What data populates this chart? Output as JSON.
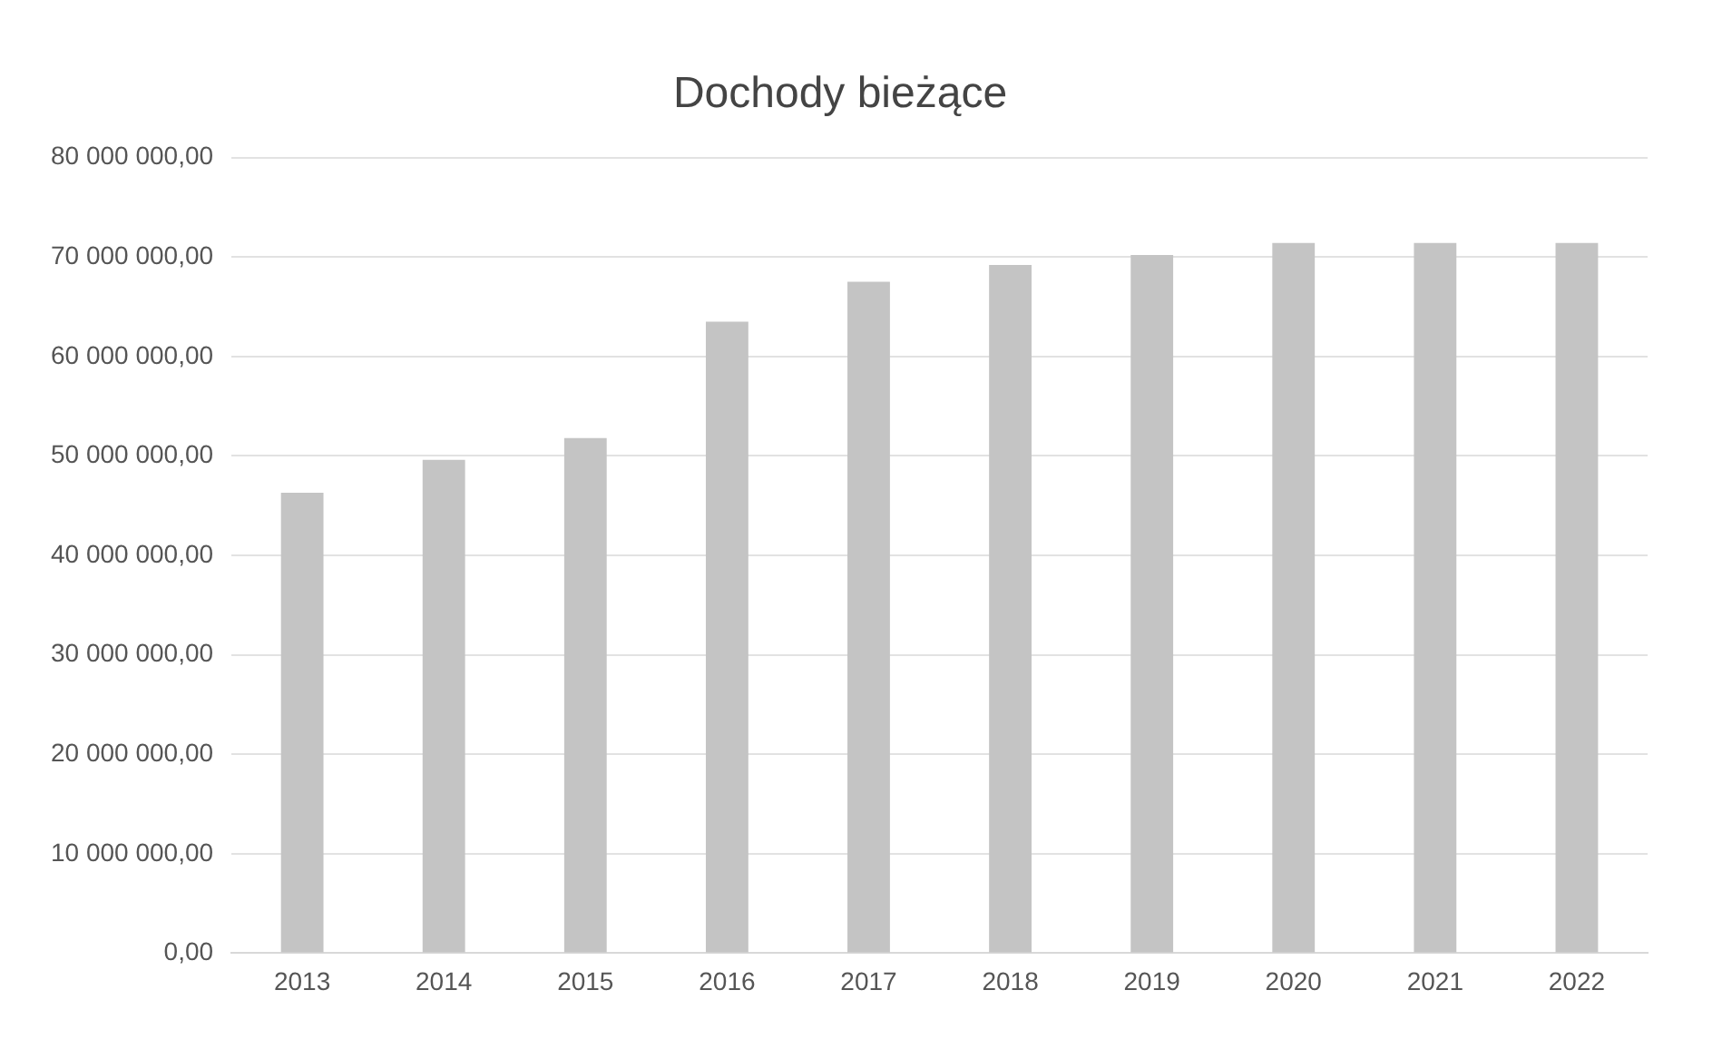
{
  "chart_data": {
    "type": "bar",
    "title": "Dochody bieżące",
    "categories": [
      "2013",
      "2014",
      "2015",
      "2016",
      "2017",
      "2018",
      "2019",
      "2020",
      "2021",
      "2022"
    ],
    "values": [
      46300000,
      49600000,
      51800000,
      63500000,
      67500000,
      69200000,
      70200000,
      71400000,
      71400000,
      71400000
    ],
    "color": "#c4c4c4",
    "ylim": [
      0,
      80000000
    ],
    "yticks": [
      {
        "value": 0,
        "label": "0,00"
      },
      {
        "value": 10000000,
        "label": "10 000 000,00"
      },
      {
        "value": 20000000,
        "label": "20 000 000,00"
      },
      {
        "value": 30000000,
        "label": "30 000 000,00"
      },
      {
        "value": 40000000,
        "label": "40 000 000,00"
      },
      {
        "value": 50000000,
        "label": "50 000 000,00"
      },
      {
        "value": 60000000,
        "label": "60 000 000,00"
      },
      {
        "value": 70000000,
        "label": "70 000 000,00"
      },
      {
        "value": 80000000,
        "label": "80 000 000,00"
      }
    ],
    "grid": "y",
    "legend": false
  }
}
